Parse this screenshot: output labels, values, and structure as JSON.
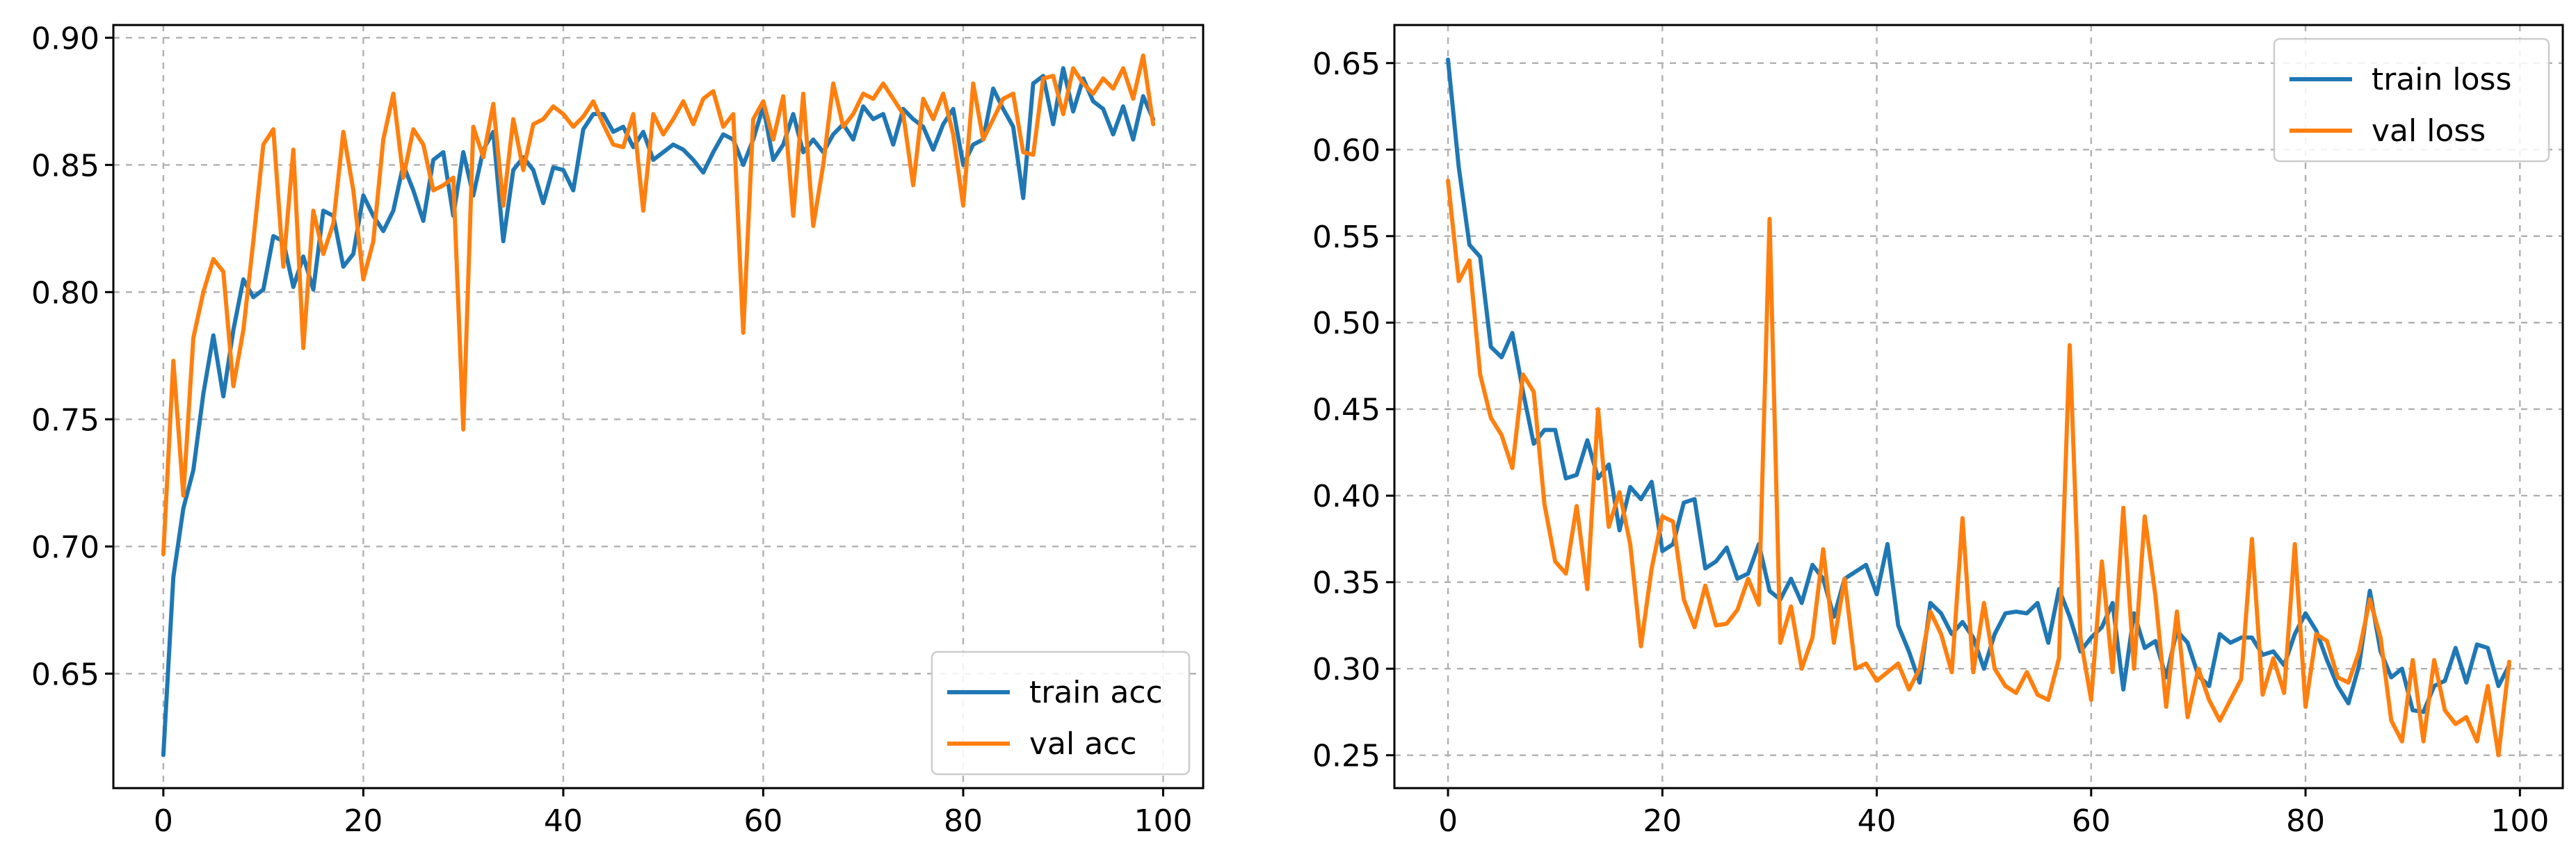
{
  "colors": {
    "train": "#1f77b4",
    "val": "#ff7f0e"
  },
  "chart_data": [
    {
      "id": "acc",
      "type": "line",
      "title": "",
      "xlabel": "",
      "ylabel": "",
      "xlim": [
        -5,
        104
      ],
      "ylim": [
        0.605,
        0.905
      ],
      "xticks": [
        0,
        20,
        40,
        60,
        80,
        100
      ],
      "xtick_labels": [
        "0",
        "20",
        "40",
        "60",
        "80",
        "100"
      ],
      "yticks": [
        0.65,
        0.7,
        0.75,
        0.8,
        0.85,
        0.9
      ],
      "ytick_labels": [
        "0.65",
        "0.70",
        "0.75",
        "0.80",
        "0.85",
        "0.90"
      ],
      "grid": true,
      "legend_loc": "lower-right",
      "series": [
        {
          "name": "train acc",
          "color": "#1f77b4",
          "values": [
            0.618,
            0.688,
            0.715,
            0.73,
            0.76,
            0.783,
            0.759,
            0.785,
            0.805,
            0.798,
            0.801,
            0.822,
            0.82,
            0.802,
            0.814,
            0.801,
            0.832,
            0.83,
            0.81,
            0.815,
            0.838,
            0.83,
            0.824,
            0.832,
            0.85,
            0.84,
            0.828,
            0.852,
            0.855,
            0.83,
            0.855,
            0.838,
            0.856,
            0.863,
            0.82,
            0.848,
            0.853,
            0.848,
            0.835,
            0.849,
            0.848,
            0.84,
            0.864,
            0.87,
            0.87,
            0.863,
            0.865,
            0.857,
            0.863,
            0.852,
            0.855,
            0.858,
            0.856,
            0.852,
            0.847,
            0.855,
            0.862,
            0.86,
            0.85,
            0.86,
            0.873,
            0.852,
            0.858,
            0.87,
            0.855,
            0.86,
            0.855,
            0.862,
            0.866,
            0.86,
            0.873,
            0.868,
            0.87,
            0.858,
            0.872,
            0.868,
            0.865,
            0.856,
            0.866,
            0.872,
            0.85,
            0.858,
            0.86,
            0.88,
            0.872,
            0.865,
            0.837,
            0.882,
            0.885,
            0.866,
            0.888,
            0.871,
            0.884,
            0.875,
            0.872,
            0.862,
            0.873,
            0.86,
            0.877,
            0.868
          ]
        },
        {
          "name": "val acc",
          "color": "#ff7f0e",
          "values": [
            0.697,
            0.773,
            0.72,
            0.782,
            0.8,
            0.813,
            0.808,
            0.763,
            0.785,
            0.82,
            0.858,
            0.864,
            0.81,
            0.856,
            0.778,
            0.832,
            0.815,
            0.827,
            0.863,
            0.84,
            0.805,
            0.82,
            0.86,
            0.878,
            0.845,
            0.864,
            0.858,
            0.84,
            0.842,
            0.845,
            0.746,
            0.865,
            0.853,
            0.874,
            0.834,
            0.868,
            0.848,
            0.866,
            0.868,
            0.873,
            0.87,
            0.865,
            0.869,
            0.875,
            0.866,
            0.858,
            0.857,
            0.87,
            0.832,
            0.87,
            0.862,
            0.868,
            0.875,
            0.866,
            0.876,
            0.879,
            0.865,
            0.87,
            0.784,
            0.868,
            0.875,
            0.86,
            0.877,
            0.83,
            0.878,
            0.826,
            0.85,
            0.882,
            0.865,
            0.87,
            0.878,
            0.876,
            0.882,
            0.876,
            0.87,
            0.842,
            0.876,
            0.868,
            0.878,
            0.862,
            0.834,
            0.882,
            0.86,
            0.868,
            0.876,
            0.878,
            0.855,
            0.854,
            0.884,
            0.885,
            0.87,
            0.888,
            0.882,
            0.878,
            0.884,
            0.88,
            0.888,
            0.876,
            0.893,
            0.866
          ]
        }
      ]
    },
    {
      "id": "loss",
      "type": "line",
      "title": "",
      "xlabel": "",
      "ylabel": "",
      "xlim": [
        -5,
        104
      ],
      "ylim": [
        0.231,
        0.672
      ],
      "xticks": [
        0,
        20,
        40,
        60,
        80,
        100
      ],
      "xtick_labels": [
        "0",
        "20",
        "40",
        "60",
        "80",
        "100"
      ],
      "yticks": [
        0.25,
        0.3,
        0.35,
        0.4,
        0.45,
        0.5,
        0.55,
        0.6,
        0.65
      ],
      "ytick_labels": [
        "0.25",
        "0.30",
        "0.35",
        "0.40",
        "0.45",
        "0.50",
        "0.55",
        "0.60",
        "0.65"
      ],
      "grid": true,
      "legend_loc": "upper-right",
      "series": [
        {
          "name": "train loss",
          "color": "#1f77b4",
          "values": [
            0.652,
            0.59,
            0.545,
            0.538,
            0.486,
            0.48,
            0.494,
            0.46,
            0.43,
            0.438,
            0.438,
            0.41,
            0.412,
            0.432,
            0.41,
            0.418,
            0.38,
            0.405,
            0.398,
            0.408,
            0.368,
            0.372,
            0.396,
            0.398,
            0.358,
            0.362,
            0.37,
            0.352,
            0.355,
            0.372,
            0.345,
            0.34,
            0.352,
            0.338,
            0.36,
            0.352,
            0.33,
            0.352,
            0.356,
            0.36,
            0.343,
            0.372,
            0.325,
            0.31,
            0.292,
            0.338,
            0.332,
            0.32,
            0.327,
            0.318,
            0.3,
            0.32,
            0.332,
            0.333,
            0.332,
            0.338,
            0.315,
            0.346,
            0.33,
            0.31,
            0.318,
            0.324,
            0.338,
            0.288,
            0.332,
            0.312,
            0.316,
            0.295,
            0.322,
            0.315,
            0.296,
            0.29,
            0.32,
            0.315,
            0.318,
            0.318,
            0.308,
            0.31,
            0.302,
            0.32,
            0.332,
            0.322,
            0.305,
            0.29,
            0.28,
            0.302,
            0.345,
            0.31,
            0.295,
            0.3,
            0.276,
            0.275,
            0.29,
            0.293,
            0.312,
            0.292,
            0.314,
            0.312,
            0.29,
            0.302
          ]
        },
        {
          "name": "val loss",
          "color": "#ff7f0e",
          "values": [
            0.582,
            0.524,
            0.536,
            0.47,
            0.445,
            0.435,
            0.416,
            0.47,
            0.46,
            0.395,
            0.362,
            0.355,
            0.394,
            0.346,
            0.45,
            0.382,
            0.402,
            0.372,
            0.313,
            0.358,
            0.388,
            0.385,
            0.34,
            0.324,
            0.348,
            0.325,
            0.326,
            0.334,
            0.352,
            0.337,
            0.56,
            0.315,
            0.336,
            0.3,
            0.318,
            0.369,
            0.315,
            0.352,
            0.3,
            0.303,
            0.293,
            0.298,
            0.303,
            0.288,
            0.3,
            0.333,
            0.32,
            0.298,
            0.387,
            0.298,
            0.338,
            0.3,
            0.29,
            0.286,
            0.298,
            0.285,
            0.282,
            0.306,
            0.487,
            0.318,
            0.282,
            0.362,
            0.298,
            0.393,
            0.3,
            0.388,
            0.342,
            0.278,
            0.333,
            0.272,
            0.3,
            0.282,
            0.27,
            0.282,
            0.294,
            0.375,
            0.285,
            0.306,
            0.286,
            0.372,
            0.278,
            0.32,
            0.316,
            0.295,
            0.292,
            0.31,
            0.34,
            0.318,
            0.27,
            0.258,
            0.305,
            0.258,
            0.305,
            0.276,
            0.268,
            0.272,
            0.258,
            0.29,
            0.25,
            0.304
          ]
        }
      ]
    }
  ]
}
